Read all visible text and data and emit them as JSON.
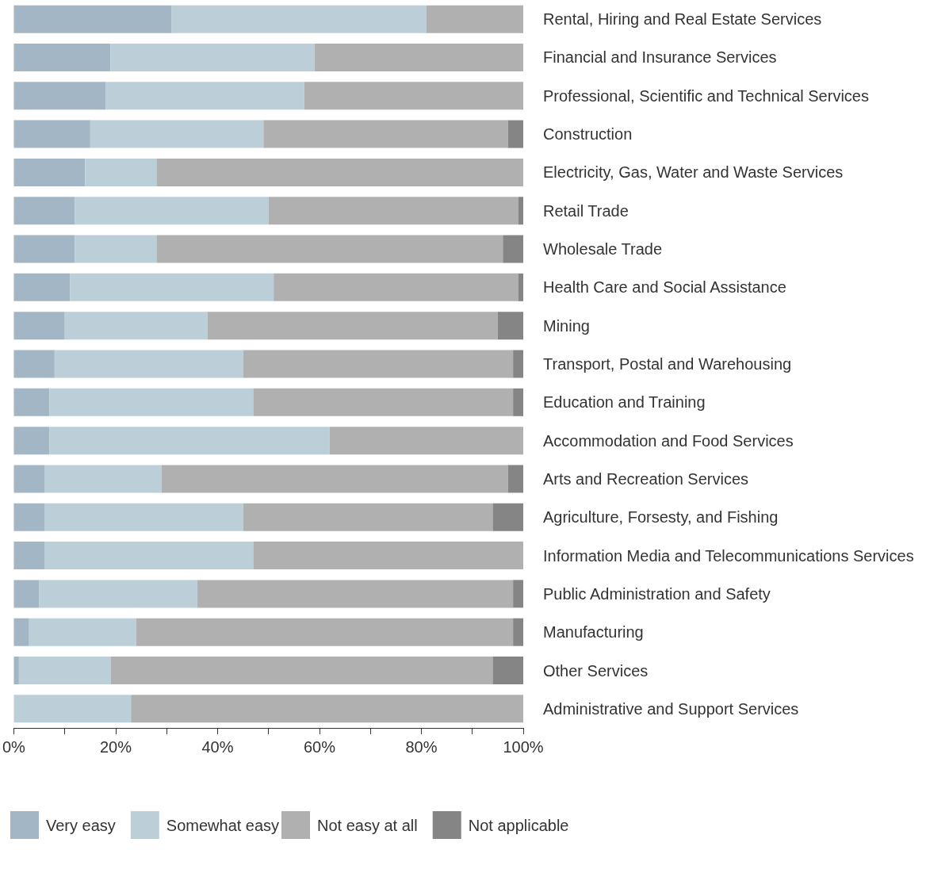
{
  "chart_data": {
    "type": "bar",
    "orientation": "horizontal",
    "stacked": true,
    "legend": "bottom",
    "grid": false,
    "categories": [
      "Rental, Hiring and Real Estate Services",
      "Financial and Insurance Services",
      "Professional, Scientific and Technical Services",
      "Construction",
      "Electricity, Gas, Water and Waste Services",
      "Retail Trade",
      "Wholesale Trade",
      "Health Care and Social Assistance",
      "Mining",
      "Transport, Postal and Warehousing",
      "Education and Training",
      "Accommodation and Food Services",
      "Arts and Recreation Services",
      "Agriculture, Forsesty, and Fishing",
      "Information Media and Telecommunications Services",
      "Public Administration and Safety",
      "Manufacturing",
      "Other Services",
      "Administrative and Support Services"
    ],
    "series": [
      {
        "name": "Very easy",
        "color": "#a2b6c5",
        "values": [
          31,
          19,
          18,
          15,
          14,
          12,
          12,
          11,
          10,
          8,
          7,
          7,
          6,
          6,
          6,
          5,
          3,
          1,
          0
        ]
      },
      {
        "name": "Somewhat easy",
        "color": "#bccfd9",
        "values": [
          50,
          40,
          39,
          34,
          14,
          38,
          16,
          40,
          28,
          37,
          40,
          55,
          23,
          39,
          41,
          31,
          21,
          18,
          23
        ]
      },
      {
        "name": "Not easy at all",
        "color": "#b0b0b0",
        "values": [
          19,
          41,
          43,
          48,
          72,
          49,
          68,
          48,
          57,
          53,
          51,
          38,
          68,
          49,
          53,
          62,
          74,
          75,
          77
        ]
      },
      {
        "name": "Not applicable",
        "color": "#858585",
        "values": [
          0,
          0,
          0,
          3,
          0,
          1,
          4,
          1,
          5,
          2,
          2,
          0,
          3,
          6,
          0,
          2,
          2,
          6,
          0
        ]
      }
    ],
    "xlim": [
      0,
      100
    ],
    "xticks": [
      {
        "value": 0,
        "label": "0%"
      },
      {
        "value": 10,
        "label": null
      },
      {
        "value": 20,
        "label": "20%"
      },
      {
        "value": 30,
        "label": null
      },
      {
        "value": 40,
        "label": "40%"
      },
      {
        "value": 50,
        "label": null
      },
      {
        "value": 60,
        "label": "60%"
      },
      {
        "value": 70,
        "label": null
      },
      {
        "value": 80,
        "label": "80%"
      },
      {
        "value": 90,
        "label": null
      },
      {
        "value": 100,
        "label": "100%"
      }
    ]
  }
}
